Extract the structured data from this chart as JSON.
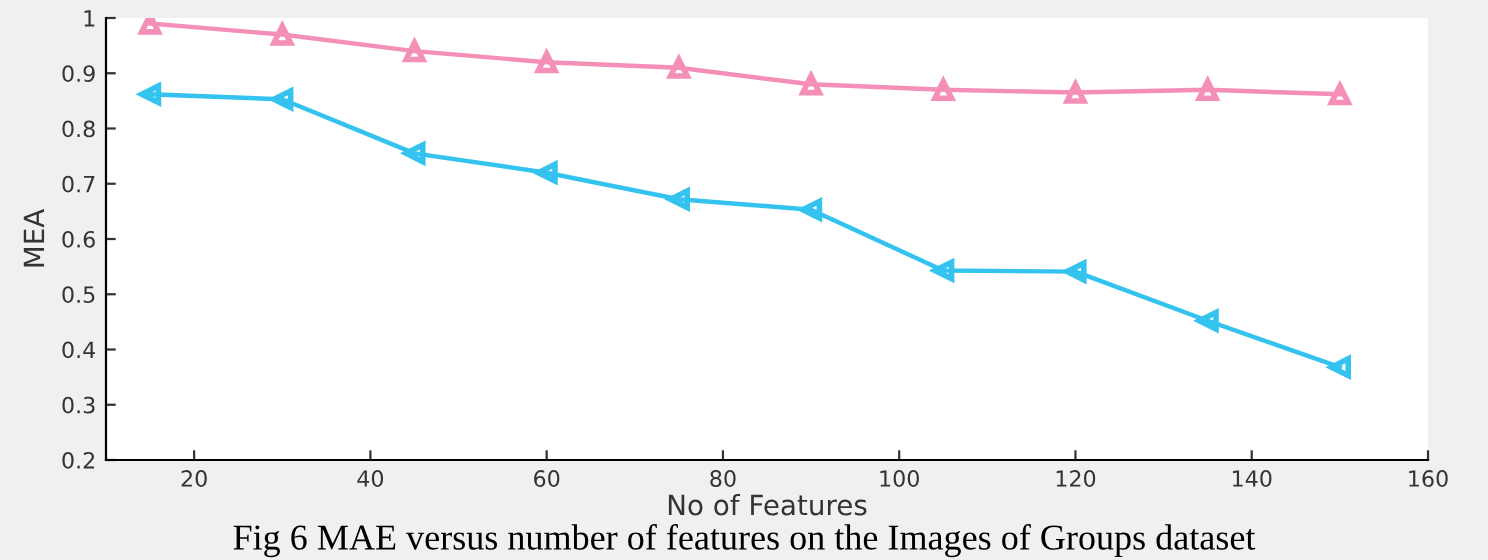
{
  "chart_data": {
    "type": "line",
    "xlabel": "No of Features",
    "ylabel": "MEA",
    "x": [
      15,
      30,
      45,
      60,
      75,
      90,
      105,
      120,
      135,
      150
    ],
    "series": [
      {
        "color": "#f48fb8",
        "marker": "triangle",
        "values": [
          0.99,
          0.97,
          0.94,
          0.92,
          0.91,
          0.88,
          0.87,
          0.865,
          0.87,
          0.862
        ]
      },
      {
        "color": "#33c3ee",
        "marker": "triangle-left",
        "values": [
          0.862,
          0.853,
          0.755,
          0.72,
          0.672,
          0.653,
          0.543,
          0.541,
          0.452,
          0.368
        ]
      }
    ],
    "xlim": [
      10,
      160
    ],
    "xticks": [
      20,
      40,
      60,
      80,
      100,
      120,
      140,
      160
    ],
    "ylim": [
      0.2,
      1
    ],
    "yticks": [
      0.2,
      0.3,
      0.4,
      0.5,
      0.6,
      0.7,
      0.8,
      0.9,
      1
    ],
    "grid": false,
    "legend": false,
    "line_style": "solid",
    "annotations": [
      "Fig 6 MAE versus number of features on the Images of Groups dataset"
    ]
  }
}
